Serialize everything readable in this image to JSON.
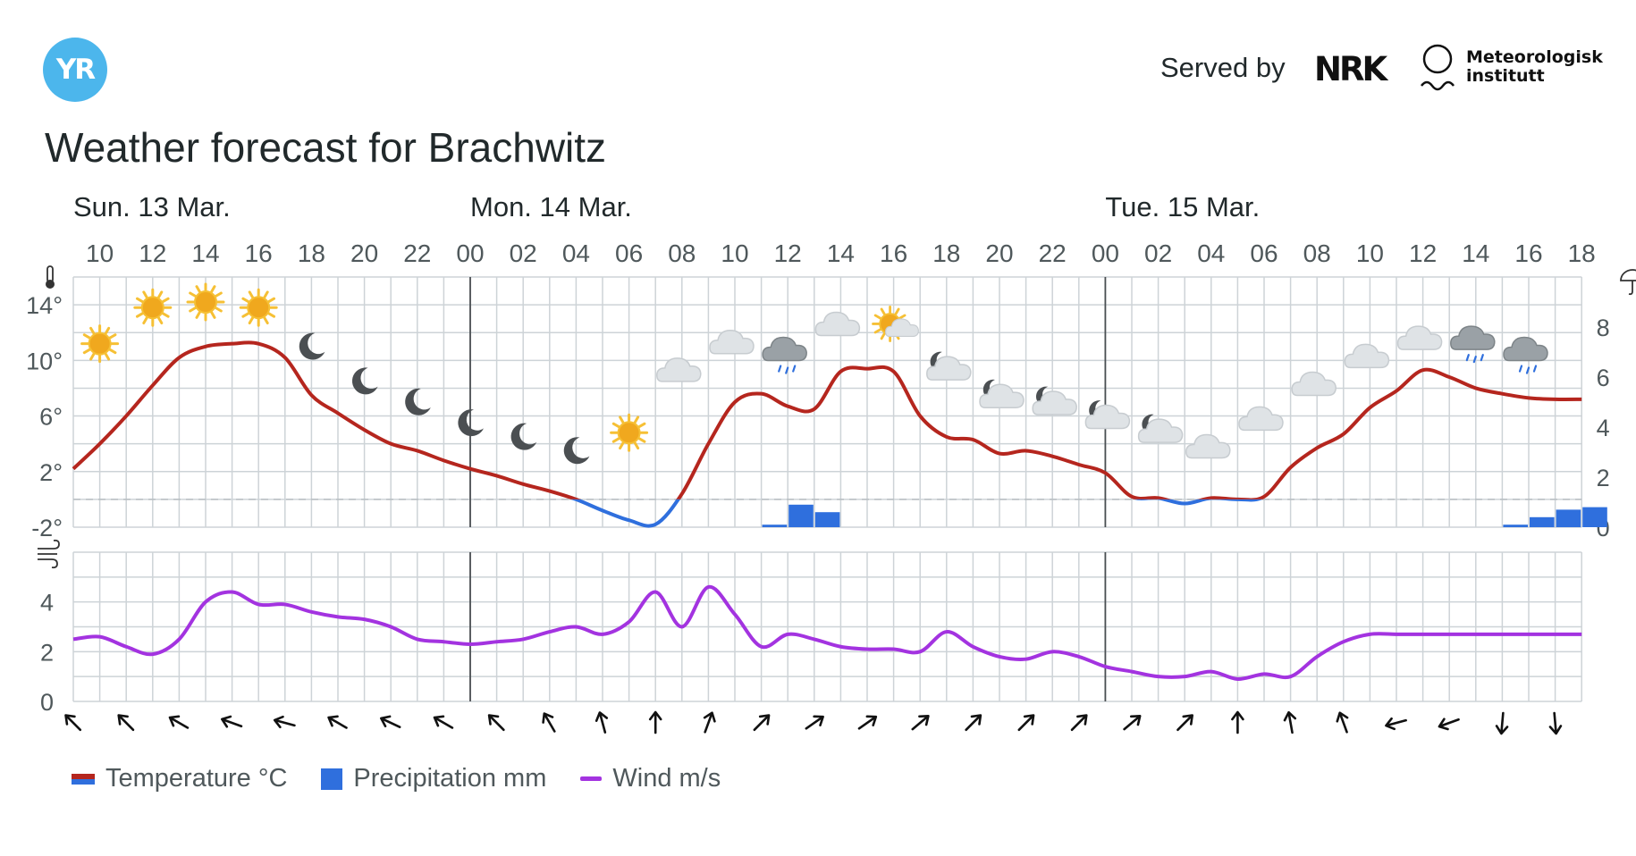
{
  "header": {
    "logo_text": "YR",
    "served_by": "Served by",
    "nrk_logo": "NRK",
    "met_line1": "Meteorologisk",
    "met_line2": "institutt",
    "title": "Weather forecast for Brachwitz"
  },
  "legend": {
    "temperature": "Temperature °C",
    "precipitation": "Precipitation mm",
    "wind": "Wind m/s"
  },
  "colors": {
    "temp_positive": "#b5261e",
    "temp_negative": "#2f6fdd",
    "precipitation": "#2f6fdd",
    "wind": "#a333e0",
    "grid": "#cdd3d7",
    "day_line": "#4a4f52"
  },
  "chart_data": {
    "type": "line",
    "days": [
      {
        "label": "Sun. 13 Mar.",
        "start_hour": 10
      },
      {
        "label": "Mon. 14 Mar.",
        "start_hour": 0
      },
      {
        "label": "Tue. 15 Mar.",
        "start_hour": 0
      }
    ],
    "start": "Sun 13 Mar 09:00",
    "hour_tick_labels": [
      "10",
      "12",
      "14",
      "16",
      "18",
      "20",
      "22",
      "00",
      "02",
      "04",
      "06",
      "08",
      "10",
      "12",
      "14",
      "16",
      "18",
      "20",
      "22",
      "00",
      "02",
      "04",
      "06",
      "08",
      "10",
      "12",
      "14",
      "16",
      "18"
    ],
    "temperature": {
      "name": "Temperature °C",
      "ylim": [
        -2,
        16
      ],
      "tick_labels": [
        "14°",
        "10°",
        "6°",
        "2°",
        "-2°"
      ],
      "tick_values": [
        14,
        10,
        6,
        2,
        -2
      ],
      "x_hours": [
        0,
        1,
        2,
        3,
        4,
        5,
        6,
        7,
        8,
        9,
        10,
        11,
        12,
        13,
        14,
        15,
        16,
        17,
        18,
        19,
        20,
        21,
        22,
        23,
        24,
        25,
        26,
        27,
        28,
        29,
        30,
        31,
        32,
        33,
        34,
        35,
        36,
        37,
        38,
        39,
        40,
        41,
        42,
        43,
        44,
        45,
        46,
        47,
        48,
        49,
        50,
        51,
        52,
        53,
        54,
        55,
        56,
        57
      ],
      "values": [
        2.2,
        4.0,
        6.0,
        8.2,
        10.2,
        11.0,
        11.2,
        11.2,
        10.2,
        7.5,
        6.2,
        5.0,
        4.0,
        3.5,
        2.8,
        2.2,
        1.7,
        1.1,
        0.6,
        0.0,
        -0.8,
        -1.5,
        -1.8,
        0.4,
        4.0,
        7.0,
        7.6,
        6.7,
        6.5,
        9.2,
        9.4,
        9.2,
        6.0,
        4.5,
        4.3,
        3.3,
        3.5,
        3.1,
        2.5,
        1.9,
        0.2,
        0.1,
        -0.3,
        0.1,
        0.0,
        0.2,
        2.3,
        3.7,
        4.7,
        6.6,
        7.8,
        9.3,
        8.8,
        8.0,
        7.6,
        7.3,
        7.2,
        7.2
      ],
      "zero_line_value": 0
    },
    "precipitation": {
      "name": "Precipitation mm",
      "ylim": [
        0,
        10
      ],
      "tick_labels": [
        "8",
        "6",
        "4",
        "2",
        "0"
      ],
      "tick_values": [
        8,
        6,
        4,
        2,
        0
      ],
      "bars": [
        {
          "hour": 26,
          "value": 0.1
        },
        {
          "hour": 27,
          "value": 0.9
        },
        {
          "hour": 28,
          "value": 0.6
        },
        {
          "hour": 54,
          "value": 0.1
        },
        {
          "hour": 55,
          "value": 0.4
        },
        {
          "hour": 56,
          "value": 0.7
        },
        {
          "hour": 57,
          "value": 0.8
        }
      ]
    },
    "wind": {
      "name": "Wind m/s",
      "ylim": [
        0,
        6
      ],
      "tick_labels": [
        "4",
        "2",
        "0"
      ],
      "tick_values": [
        4,
        2,
        0
      ],
      "x_hours": [
        0,
        1,
        2,
        3,
        4,
        5,
        6,
        7,
        8,
        9,
        10,
        11,
        12,
        13,
        14,
        15,
        16,
        17,
        18,
        19,
        20,
        21,
        22,
        23,
        24,
        25,
        26,
        27,
        28,
        29,
        30,
        31,
        32,
        33,
        34,
        35,
        36,
        37,
        38,
        39,
        40,
        41,
        42,
        43,
        44,
        45,
        46,
        47,
        48,
        49,
        50,
        51,
        52,
        53,
        54,
        55,
        56,
        57
      ],
      "values": [
        2.5,
        2.6,
        2.2,
        1.9,
        2.5,
        4.0,
        4.4,
        3.9,
        3.9,
        3.6,
        3.4,
        3.3,
        3.0,
        2.5,
        2.4,
        2.3,
        2.4,
        2.5,
        2.8,
        3.0,
        2.7,
        3.2,
        4.4,
        3.0,
        4.6,
        3.5,
        2.2,
        2.7,
        2.5,
        2.2,
        2.1,
        2.1,
        2.0,
        2.8,
        2.2,
        1.8,
        1.7,
        2.0,
        1.8,
        1.4,
        1.2,
        1.0,
        1.0,
        1.2,
        0.9,
        1.1,
        1.0,
        1.8,
        2.4,
        2.7,
        2.7,
        2.7,
        2.7,
        2.7,
        2.7,
        2.7,
        2.7,
        2.7
      ]
    },
    "weather_symbols": [
      {
        "hour": 1,
        "icon": "sun",
        "temp": 11.2
      },
      {
        "hour": 3,
        "icon": "sun",
        "temp": 13.8
      },
      {
        "hour": 5,
        "icon": "sun",
        "temp": 14.2
      },
      {
        "hour": 7,
        "icon": "sun",
        "temp": 13.8
      },
      {
        "hour": 9,
        "icon": "moon",
        "temp": 11
      },
      {
        "hour": 11,
        "icon": "moon",
        "temp": 8.5
      },
      {
        "hour": 13,
        "icon": "moon",
        "temp": 7
      },
      {
        "hour": 15,
        "icon": "moon",
        "temp": 5.5
      },
      {
        "hour": 17,
        "icon": "moon",
        "temp": 4.5
      },
      {
        "hour": 19,
        "icon": "moon",
        "temp": 3.5
      },
      {
        "hour": 21,
        "icon": "sun",
        "temp": 4.8
      },
      {
        "hour": 23,
        "icon": "cloud",
        "temp": 9
      },
      {
        "hour": 25,
        "icon": "cloud",
        "temp": 11
      },
      {
        "hour": 27,
        "icon": "rain-cloud",
        "temp": 10.5
      },
      {
        "hour": 29,
        "icon": "cloud",
        "temp": 12.3
      },
      {
        "hour": 31,
        "icon": "sun-cloud",
        "temp": 12.5
      },
      {
        "hour": 33,
        "icon": "moon-cloud",
        "temp": 9.5
      },
      {
        "hour": 35,
        "icon": "moon-cloud",
        "temp": 7.5
      },
      {
        "hour": 37,
        "icon": "moon-cloud",
        "temp": 7
      },
      {
        "hour": 39,
        "icon": "moon-cloud",
        "temp": 6
      },
      {
        "hour": 41,
        "icon": "moon-cloud",
        "temp": 5
      },
      {
        "hour": 43,
        "icon": "cloud",
        "temp": 3.5
      },
      {
        "hour": 45,
        "icon": "cloud",
        "temp": 5.5
      },
      {
        "hour": 47,
        "icon": "cloud",
        "temp": 8
      },
      {
        "hour": 49,
        "icon": "cloud",
        "temp": 10
      },
      {
        "hour": 51,
        "icon": "cloud",
        "temp": 11.3
      },
      {
        "hour": 53,
        "icon": "rain-cloud",
        "temp": 11.3
      },
      {
        "hour": 55,
        "icon": "rain-cloud",
        "temp": 10.5
      }
    ],
    "wind_arrows": [
      {
        "hour": 0,
        "dir": 315
      },
      {
        "hour": 2,
        "dir": 315
      },
      {
        "hour": 4,
        "dir": 300
      },
      {
        "hour": 6,
        "dir": 290
      },
      {
        "hour": 8,
        "dir": 285
      },
      {
        "hour": 10,
        "dir": 300
      },
      {
        "hour": 12,
        "dir": 295
      },
      {
        "hour": 14,
        "dir": 300
      },
      {
        "hour": 16,
        "dir": 315
      },
      {
        "hour": 18,
        "dir": 330
      },
      {
        "hour": 20,
        "dir": 345
      },
      {
        "hour": 22,
        "dir": 0
      },
      {
        "hour": 24,
        "dir": 20
      },
      {
        "hour": 26,
        "dir": 45
      },
      {
        "hour": 28,
        "dir": 55
      },
      {
        "hour": 30,
        "dir": 55
      },
      {
        "hour": 32,
        "dir": 50
      },
      {
        "hour": 34,
        "dir": 45
      },
      {
        "hour": 36,
        "dir": 45
      },
      {
        "hour": 38,
        "dir": 45
      },
      {
        "hour": 40,
        "dir": 50
      },
      {
        "hour": 42,
        "dir": 45
      },
      {
        "hour": 44,
        "dir": 0
      },
      {
        "hour": 46,
        "dir": 350
      },
      {
        "hour": 48,
        "dir": 340
      },
      {
        "hour": 50,
        "dir": 255
      },
      {
        "hour": 52,
        "dir": 250
      },
      {
        "hour": 54,
        "dir": 185
      },
      {
        "hour": 56,
        "dir": 175
      }
    ]
  }
}
